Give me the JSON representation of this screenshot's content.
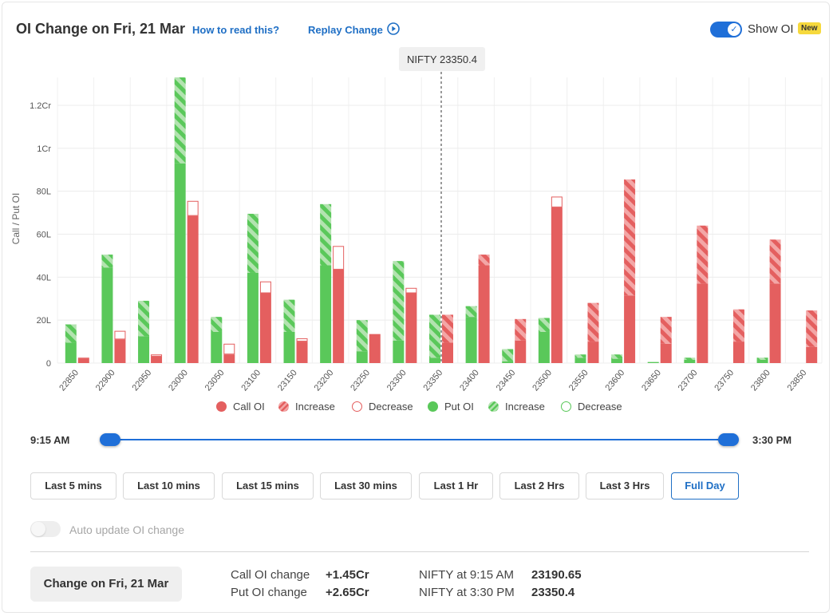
{
  "header": {
    "title": "OI Change on Fri, 21 Mar",
    "how_to_read": "How to read this?",
    "replay_change": "Replay Change",
    "show_oi_label": "Show OI",
    "new_badge": "New"
  },
  "chart_data": {
    "type": "bar",
    "ylabel": "Call / Put OI",
    "y_ticks": [
      "0",
      "20L",
      "40L",
      "60L",
      "80L",
      "1Cr",
      "1.2Cr"
    ],
    "y_tick_values": [
      0,
      20,
      40,
      60,
      80,
      100,
      120
    ],
    "ylim": [
      0,
      133
    ],
    "units": "Lakh",
    "grid": true,
    "spot_marker": {
      "strike": "23350",
      "label": "NIFTY 23350.4"
    },
    "categories": [
      "22850",
      "22900",
      "22950",
      "23000",
      "23050",
      "23100",
      "23150",
      "23200",
      "23250",
      "23300",
      "23350",
      "23400",
      "23450",
      "23500",
      "23550",
      "23600",
      "23650",
      "23700",
      "23750",
      "23800",
      "23850"
    ],
    "series": [
      {
        "name": "Put OI",
        "start": [
          9.5,
          44.5,
          12.5,
          93,
          14.5,
          42,
          14.5,
          45.5,
          5.5,
          10.5,
          2.5,
          21.5,
          0.8,
          14.5,
          2.5,
          2,
          0.5,
          1.5,
          0,
          1.5,
          0
        ],
        "end": [
          18,
          50.5,
          29,
          133,
          21.5,
          69.5,
          29.5,
          74,
          20,
          47.5,
          22.5,
          26.5,
          6.5,
          21,
          4,
          4,
          0.5,
          2.5,
          0,
          2.5,
          0
        ]
      },
      {
        "name": "Call OI",
        "start": [
          2.5,
          15,
          4,
          75.5,
          9,
          38,
          11.5,
          54.5,
          13.5,
          35,
          9.5,
          45.5,
          10.5,
          77.5,
          10,
          31.5,
          9,
          37,
          10,
          37,
          7.5
        ],
        "end": [
          2,
          11,
          3,
          68.5,
          4,
          32.5,
          10,
          43.5,
          13.5,
          32.5,
          22.5,
          50.5,
          20.5,
          72.5,
          28,
          85.5,
          21.5,
          64,
          25,
          57.5,
          24.5
        ]
      }
    ],
    "legend": [
      {
        "label": "Call OI",
        "kind": "call-oi",
        "color": "#e45f5f"
      },
      {
        "label": "Increase",
        "kind": "call-increase",
        "color": "#e45f5f"
      },
      {
        "label": "Decrease",
        "kind": "call-decrease",
        "color": "#e45f5f"
      },
      {
        "label": "Put OI",
        "kind": "put-oi",
        "color": "#5ac85a"
      },
      {
        "label": "Increase",
        "kind": "put-increase",
        "color": "#5ac85a"
      },
      {
        "label": "Decrease",
        "kind": "put-decrease",
        "color": "#5ac85a"
      }
    ]
  },
  "time_range": {
    "start": "9:15 AM",
    "end": "3:30 PM"
  },
  "range_buttons": [
    "Last 5 mins",
    "Last 10 mins",
    "Last 15 mins",
    "Last 30 mins",
    "Last 1 Hr",
    "Last 2 Hrs",
    "Last 3 Hrs",
    "Full Day"
  ],
  "active_range": "Full Day",
  "auto_update_label": "Auto update OI change",
  "footer": {
    "change_button": "Change on Fri, 21 Mar",
    "call_oi_change_label": "Call OI change",
    "call_oi_change_value": "+1.45Cr",
    "put_oi_change_label": "Put OI change",
    "put_oi_change_value": "+2.65Cr",
    "nifty_start_label": "NIFTY at 9:15 AM",
    "nifty_start_value": "23190.65",
    "nifty_end_label": "NIFTY at 3:30 PM",
    "nifty_end_value": "23350.4"
  },
  "colors": {
    "call": "#e45f5f",
    "call_light": "#f3a6a6",
    "put": "#5ac85a",
    "put_light": "#b3e3b0",
    "accent": "#1f6fd8"
  }
}
